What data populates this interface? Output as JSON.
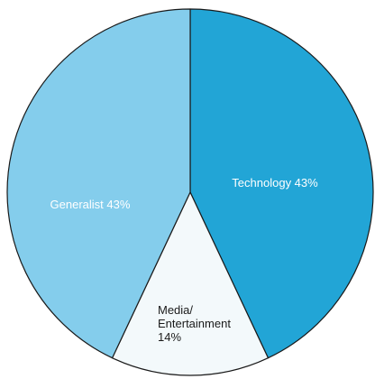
{
  "chart_data": {
    "type": "pie",
    "title": "",
    "slices": [
      {
        "name": "Technology",
        "value": 43,
        "color": "#22a5d6",
        "label_lines": [
          "Technology 43%"
        ],
        "label_color": "#ffffff"
      },
      {
        "name": "Media/ Entertainment",
        "value": 14,
        "color": "#f3f9fb",
        "label_lines": [
          "Media/",
          "Entertainment",
          "14%"
        ],
        "label_color": "#1a1a1a"
      },
      {
        "name": "Generalist",
        "value": 43,
        "color": "#84cdec",
        "label_lines": [
          "Generalist 43%"
        ],
        "label_color": "#ffffff"
      }
    ],
    "start_angle_deg": 0,
    "direction": "clockwise",
    "stroke_color": "#1a1a1a"
  }
}
